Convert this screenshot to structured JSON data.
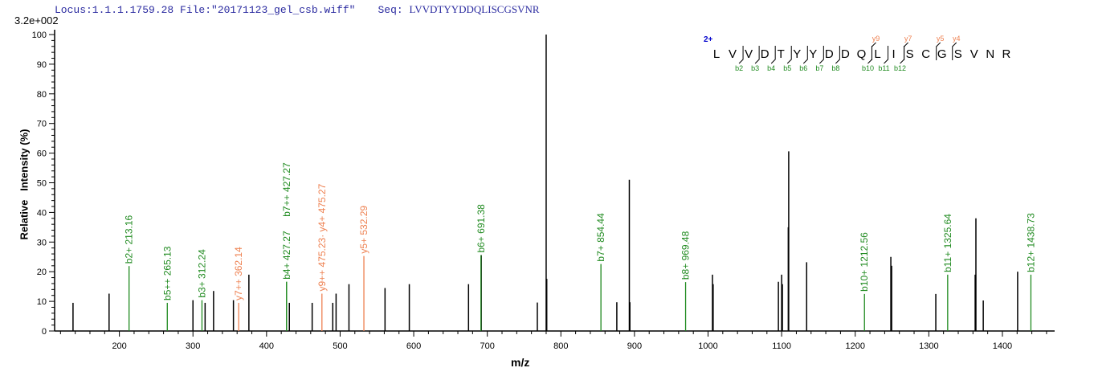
{
  "header": {
    "locus_file": "Locus:1.1.1.1759.28 File:\"20171123_gel_csb.wiff\"",
    "seq_label": "Seq:",
    "seq_value": "LVVDTYYDDQLISCGSVNR"
  },
  "chart_data": {
    "type": "bar",
    "subtype": "mass-spectrum stick plot",
    "intensity_scale": "3.2e+002",
    "xlabel": "m/z",
    "ylabel": "Relative   Intensity (%)",
    "xlim": [
      112,
      1471
    ],
    "ylim": [
      0,
      100
    ],
    "x_ticks": [
      200,
      300,
      400,
      500,
      600,
      700,
      800,
      900,
      1000,
      1100,
      1200,
      1300,
      1400
    ],
    "y_ticks": [
      0,
      10,
      20,
      30,
      40,
      50,
      60,
      70,
      80,
      90,
      100
    ],
    "grid": false,
    "colors": {
      "unassigned": "#000000",
      "b_ion": "#1f8a1f",
      "y_ion": "#ee8050",
      "charge": "#0000cc"
    },
    "peaks": [
      {
        "mz": 137,
        "intensity": 9.5
      },
      {
        "mz": 186,
        "intensity": 12.6
      },
      {
        "mz": 300,
        "intensity": 10.4
      },
      {
        "mz": 316.5,
        "intensity": 9.5
      },
      {
        "mz": 328,
        "intensity": 13.5
      },
      {
        "mz": 355,
        "intensity": 10.4
      },
      {
        "mz": 376,
        "intensity": 19
      },
      {
        "mz": 431,
        "intensity": 9.5
      },
      {
        "mz": 462,
        "intensity": 9.5
      },
      {
        "mz": 490,
        "intensity": 9.5
      },
      {
        "mz": 494.5,
        "intensity": 12.6
      },
      {
        "mz": 512,
        "intensity": 15.8
      },
      {
        "mz": 561,
        "intensity": 14.5
      },
      {
        "mz": 594,
        "intensity": 15.8
      },
      {
        "mz": 674.5,
        "intensity": 15.8
      },
      {
        "mz": 691.8,
        "intensity": 25.6
      },
      {
        "mz": 768,
        "intensity": 9.6
      },
      {
        "mz": 780,
        "intensity": 100
      },
      {
        "mz": 780.8,
        "intensity": 17.6
      },
      {
        "mz": 876,
        "intensity": 9.7
      },
      {
        "mz": 893,
        "intensity": 51
      },
      {
        "mz": 893.8,
        "intensity": 9.7
      },
      {
        "mz": 1006,
        "intensity": 19
      },
      {
        "mz": 1006.9,
        "intensity": 15.8
      },
      {
        "mz": 1095.6,
        "intensity": 16.6
      },
      {
        "mz": 1100,
        "intensity": 19
      },
      {
        "mz": 1101,
        "intensity": 15.8
      },
      {
        "mz": 1109,
        "intensity": 35
      },
      {
        "mz": 1109.6,
        "intensity": 60.6
      },
      {
        "mz": 1134,
        "intensity": 23.2
      },
      {
        "mz": 1248.4,
        "intensity": 25
      },
      {
        "mz": 1249.5,
        "intensity": 22
      },
      {
        "mz": 1309.5,
        "intensity": 12.5
      },
      {
        "mz": 1363,
        "intensity": 19
      },
      {
        "mz": 1364,
        "intensity": 38
      },
      {
        "mz": 1374,
        "intensity": 10.3
      },
      {
        "mz": 1420.7,
        "intensity": 20
      }
    ],
    "annotations": [
      {
        "mz": 213.16,
        "intensity": 21.9,
        "ion": "b",
        "label": "b2+ 213.16"
      },
      {
        "mz": 265.13,
        "intensity": 9.5,
        "ion": "b",
        "label": "b5++ 265.13"
      },
      {
        "mz": 312.24,
        "intensity": 10.4,
        "ion": "b",
        "label": "b3+ 312.24"
      },
      {
        "mz": 362.14,
        "intensity": 9.5,
        "ion": "y",
        "label": "y7++ 362.14"
      },
      {
        "mz": 427.27,
        "intensity": 16.6,
        "ion": "b",
        "label": "b4+ 427.27"
      },
      {
        "mz": 427.27,
        "intensity": 16.6,
        "ion": "b",
        "label": "b7++ 427.27"
      },
      {
        "mz": 475.27,
        "intensity": 12.6,
        "ion": "y",
        "label": "y9++ 475.23· y4+ 475.27"
      },
      {
        "mz": 532.29,
        "intensity": 25.3,
        "ion": "y",
        "label": "y5+ 532.29"
      },
      {
        "mz": 691.38,
        "intensity": 25.6,
        "ion": "b",
        "label": "b6+ 691.38"
      },
      {
        "mz": 854.44,
        "intensity": 22.6,
        "ion": "b",
        "label": "b7+ 854.44"
      },
      {
        "mz": 969.48,
        "intensity": 16.5,
        "ion": "b",
        "label": "b8+ 969.48"
      },
      {
        "mz": 1212.56,
        "intensity": 12.5,
        "ion": "b",
        "label": "b10+ 1212.56"
      },
      {
        "mz": 1325.64,
        "intensity": 19,
        "ion": "b",
        "label": "b11+ 1325.64"
      },
      {
        "mz": 1438.73,
        "intensity": 19,
        "ion": "b",
        "label": "b12+ 1438.73"
      }
    ],
    "sequence": {
      "charge": "2+",
      "residues": [
        "L",
        "V",
        "V",
        "D",
        "T",
        "Y",
        "Y",
        "D",
        "D",
        "Q",
        "L",
        "I",
        "S",
        "C",
        "G",
        "S",
        "V",
        "N",
        "R"
      ],
      "b_ions": [
        {
          "n": 2,
          "label": "b2"
        },
        {
          "n": 3,
          "label": "b3"
        },
        {
          "n": 4,
          "label": "b4"
        },
        {
          "n": 5,
          "label": "b5"
        },
        {
          "n": 6,
          "label": "b6"
        },
        {
          "n": 7,
          "label": "b7"
        },
        {
          "n": 8,
          "label": "b8"
        },
        {
          "n": 10,
          "label": "b10"
        },
        {
          "n": 11,
          "label": "b11"
        },
        {
          "n": 12,
          "label": "b12"
        }
      ],
      "y_ions": [
        {
          "n": 9,
          "label": "y9"
        },
        {
          "n": 7,
          "label": "y7"
        },
        {
          "n": 5,
          "label": "y5"
        },
        {
          "n": 4,
          "label": "y4"
        }
      ]
    }
  }
}
